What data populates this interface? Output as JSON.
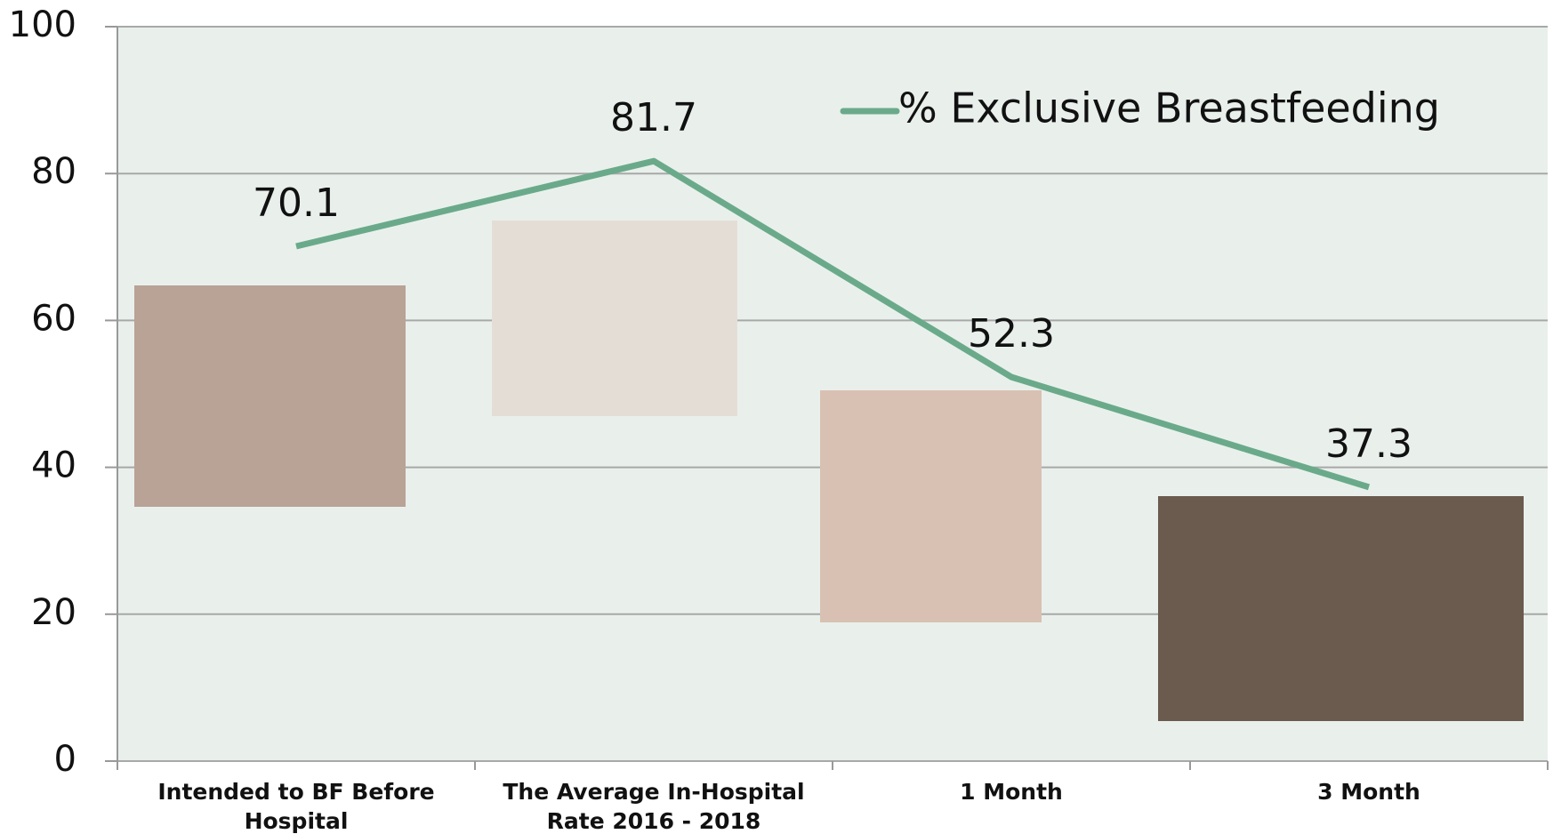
{
  "chart_data": {
    "type": "line",
    "categories": [
      "Intended to BF Before Hospital",
      "The Average In-Hospital Rate 2016 - 2018",
      "1 Month",
      "3 Month"
    ],
    "series": [
      {
        "name": "% Exclusive Breastfeeding",
        "color": "#6aaa8a",
        "values": [
          70.1,
          81.7,
          52.3,
          37.3
        ]
      }
    ],
    "ylim": [
      0,
      100
    ],
    "yticks": [
      0,
      20,
      40,
      60,
      80,
      100
    ],
    "grid": true,
    "legend": "top-right"
  }
}
